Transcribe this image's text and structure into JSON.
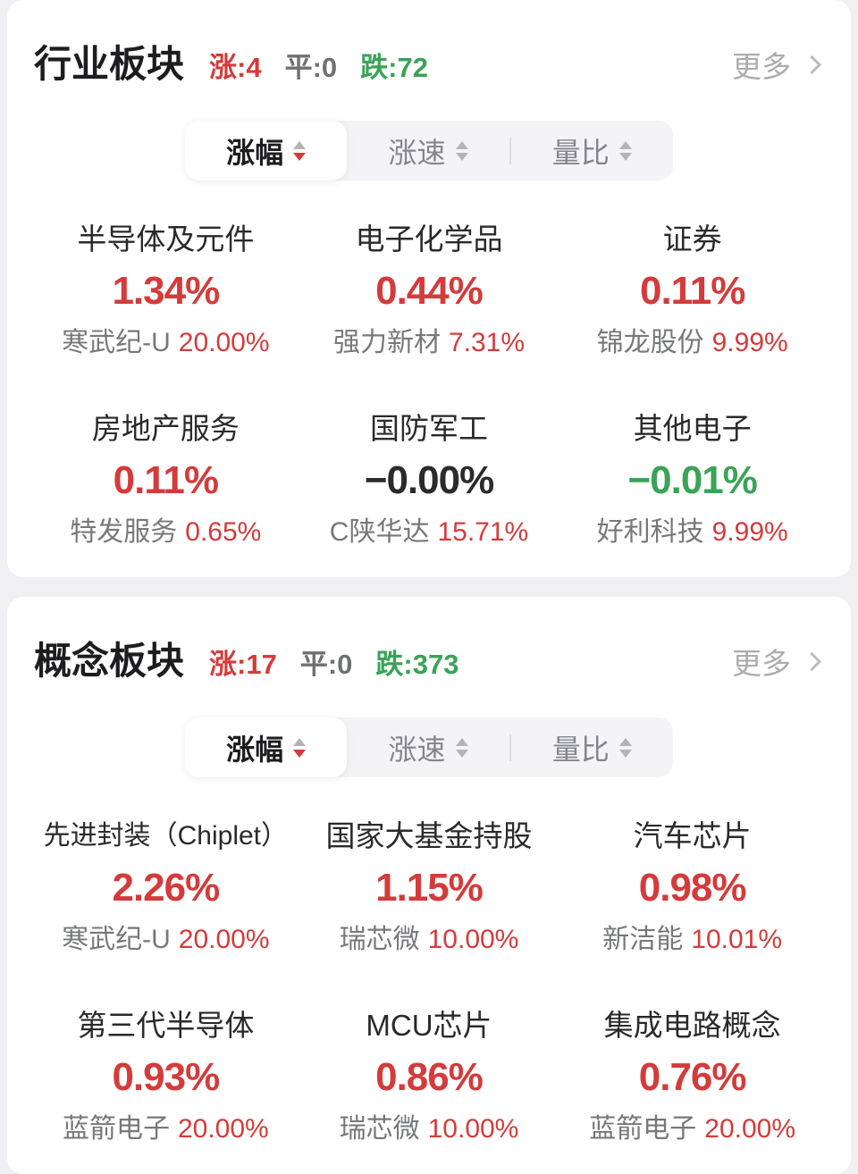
{
  "colors": {
    "up_red": "#d43b3b",
    "down_green": "#3aa357",
    "flat_dark": "#2b2b2d",
    "muted_gray": "#77787a",
    "card_bg": "#ffffff",
    "page_bg": "#f0f0f2"
  },
  "sections": [
    {
      "title": "行业板块",
      "stats": {
        "up": "涨:4",
        "flat": "平:0",
        "down": "跌:72"
      },
      "more_label": "更多",
      "tabs": [
        {
          "label": "涨幅",
          "state": "active"
        },
        {
          "label": "涨速"
        },
        {
          "label": "量比"
        }
      ],
      "items": [
        {
          "name": "半导体及元件",
          "change": "1.34%",
          "direction": "up",
          "leader": "寒武纪-U",
          "leader_change": "20.00%"
        },
        {
          "name": "电子化学品",
          "change": "0.44%",
          "direction": "up",
          "leader": "强力新材",
          "leader_change": "7.31%"
        },
        {
          "name": "证券",
          "change": "0.11%",
          "direction": "up",
          "leader": "锦龙股份",
          "leader_change": "9.99%"
        },
        {
          "name": "房地产服务",
          "change": "0.11%",
          "direction": "up",
          "leader": "特发服务",
          "leader_change": "0.65%"
        },
        {
          "name": "国防军工",
          "change": "−0.00%",
          "direction": "zero",
          "leader": "C陕华达",
          "leader_change": "15.71%"
        },
        {
          "name": "其他电子",
          "change": "−0.01%",
          "direction": "down",
          "leader": "好利科技",
          "leader_change": "9.99%"
        }
      ]
    },
    {
      "title": "概念板块",
      "stats": {
        "up": "涨:17",
        "flat": "平:0",
        "down": "跌:373"
      },
      "more_label": "更多",
      "tabs": [
        {
          "label": "涨幅",
          "state": "active"
        },
        {
          "label": "涨速"
        },
        {
          "label": "量比"
        }
      ],
      "items": [
        {
          "name": "先进封装（Chiplet）",
          "change": "2.26%",
          "direction": "up",
          "leader": "寒武纪-U",
          "leader_change": "20.00%"
        },
        {
          "name": "国家大基金持股",
          "change": "1.15%",
          "direction": "up",
          "leader": "瑞芯微",
          "leader_change": "10.00%"
        },
        {
          "name": "汽车芯片",
          "change": "0.98%",
          "direction": "up",
          "leader": "新洁能",
          "leader_change": "10.01%"
        },
        {
          "name": "第三代半导体",
          "change": "0.93%",
          "direction": "up",
          "leader": "蓝箭电子",
          "leader_change": "20.00%"
        },
        {
          "name": "MCU芯片",
          "change": "0.86%",
          "direction": "up",
          "leader": "瑞芯微",
          "leader_change": "10.00%"
        },
        {
          "name": "集成电路概念",
          "change": "0.76%",
          "direction": "up",
          "leader": "蓝箭电子",
          "leader_change": "20.00%"
        }
      ]
    }
  ]
}
